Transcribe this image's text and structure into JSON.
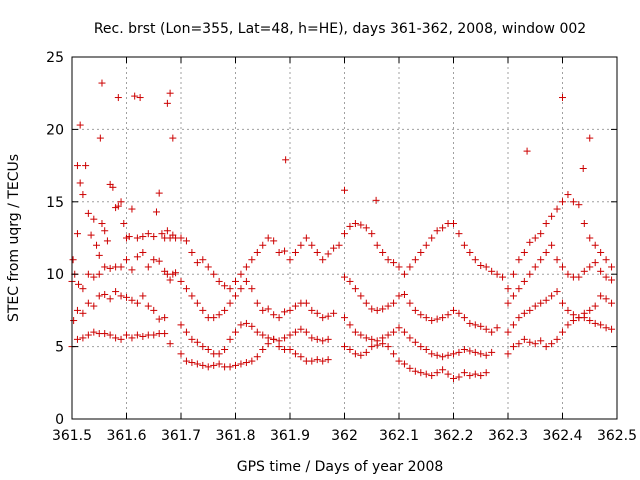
{
  "chart_data": {
    "type": "scatter",
    "title": "Rec. brst (Lon=355, Lat=48, h=HE), days 361-362, 2008, window 002",
    "xlabel": "GPS time / Days of year 2008",
    "ylabel": "STEC from uqrg / TECUs",
    "xlim": [
      361.5,
      362.5
    ],
    "ylim": [
      0,
      25
    ],
    "x_ticks": [
      "361.5",
      "361.6",
      "361.7",
      "361.8",
      "361.9",
      "362",
      "362.1",
      "362.2",
      "362.3",
      "362.4",
      "362.5"
    ],
    "y_ticks": [
      "0",
      "5",
      "10",
      "15",
      "20",
      "25"
    ],
    "grid": true,
    "marker": "plus",
    "color": "#cc0000",
    "series": [
      {
        "x": [
          361.502,
          361.51,
          361.515,
          361.52,
          361.525,
          361.53,
          361.535,
          361.54,
          361.545,
          361.55,
          361.555,
          361.56,
          361.565,
          361.57,
          361.575,
          361.58,
          361.585,
          361.59,
          361.595,
          361.6,
          361.605,
          361.61,
          361.62,
          361.63,
          361.64,
          361.65,
          361.655,
          361.66,
          361.665,
          361.67,
          361.675,
          361.68,
          361.685,
          361.69,
          361.5,
          361.505,
          361.512,
          361.52,
          361.53,
          361.54,
          361.55,
          361.56,
          361.57,
          361.58,
          361.59,
          361.6,
          361.61,
          361.62,
          361.63,
          361.64,
          361.65,
          361.66,
          361.67,
          361.675,
          361.68,
          361.685,
          361.69,
          361.503,
          361.51,
          361.52,
          361.53,
          361.54,
          361.55,
          361.56,
          361.57,
          361.58,
          361.59,
          361.6,
          361.61,
          361.62,
          361.63,
          361.64,
          361.65,
          361.66,
          361.67,
          361.5,
          361.51,
          361.52,
          361.53,
          361.54,
          361.55,
          361.56,
          361.57,
          361.58,
          361.59,
          361.6,
          361.61,
          361.62,
          361.63,
          361.64,
          361.65,
          361.66,
          361.67,
          361.68,
          361.7,
          361.71,
          361.72,
          361.73,
          361.74,
          361.75,
          361.76,
          361.77,
          361.78,
          361.79,
          361.8,
          361.81,
          361.82,
          361.83,
          361.84,
          361.85,
          361.86,
          361.87,
          361.88,
          361.89,
          361.9,
          361.91,
          361.92,
          361.93,
          361.94,
          361.95,
          361.96,
          361.97,
          361.98,
          361.99,
          361.7,
          361.71,
          361.72,
          361.73,
          361.74,
          361.75,
          361.76,
          361.77,
          361.78,
          361.79,
          361.8,
          361.81,
          361.82,
          361.83,
          361.84,
          361.85,
          361.86,
          361.87,
          361.88,
          361.89,
          361.9,
          361.91,
          361.92,
          361.93,
          361.94,
          361.95,
          361.96,
          361.97,
          361.98,
          361.7,
          361.71,
          361.72,
          361.73,
          361.74,
          361.75,
          361.76,
          361.77,
          361.78,
          361.79,
          361.8,
          361.81,
          361.82,
          361.83,
          361.84,
          361.85,
          361.86,
          361.87,
          361.88,
          361.89,
          361.9,
          361.91,
          361.92,
          361.93,
          361.94,
          361.95,
          361.96,
          361.97,
          361.7,
          361.71,
          361.72,
          361.73,
          361.74,
          361.75,
          361.76,
          361.77,
          361.78,
          361.79,
          361.8,
          361.81,
          361.82,
          361.83,
          361.84,
          361.85,
          361.86,
          361.87,
          361.88,
          361.89,
          361.9,
          361.91,
          361.92,
          361.93,
          361.94,
          361.95,
          361.96,
          361.97,
          362.0,
          362.01,
          362.02,
          362.03,
          362.04,
          362.05,
          362.06,
          362.07,
          362.08,
          362.09,
          362.1,
          362.11,
          362.12,
          362.13,
          362.14,
          362.15,
          362.16,
          362.17,
          362.18,
          362.19,
          362.2,
          362.21,
          362.22,
          362.23,
          362.24,
          362.25,
          362.26,
          362.27,
          362.28,
          362.29,
          362.0,
          362.01,
          362.02,
          362.03,
          362.04,
          362.05,
          362.06,
          362.07,
          362.08,
          362.09,
          362.1,
          362.11,
          362.12,
          362.13,
          362.14,
          362.15,
          362.16,
          362.17,
          362.18,
          362.19,
          362.2,
          362.21,
          362.22,
          362.23,
          362.24,
          362.25,
          362.26,
          362.27,
          362.28,
          362.0,
          362.01,
          362.02,
          362.03,
          362.04,
          362.05,
          362.06,
          362.07,
          362.08,
          362.09,
          362.1,
          362.11,
          362.12,
          362.13,
          362.14,
          362.15,
          362.16,
          362.17,
          362.18,
          362.19,
          362.2,
          362.21,
          362.22,
          362.23,
          362.24,
          362.25,
          362.26,
          362.27,
          362.0,
          362.01,
          362.02,
          362.03,
          362.04,
          362.05,
          362.06,
          362.07,
          362.08,
          362.09,
          362.1,
          362.11,
          362.12,
          362.13,
          362.14,
          362.15,
          362.16,
          362.17,
          362.18,
          362.19,
          362.2,
          362.21,
          362.22,
          362.23,
          362.24,
          362.25,
          362.26,
          362.3,
          362.31,
          362.32,
          362.33,
          362.34,
          362.35,
          362.36,
          362.37,
          362.38,
          362.39,
          362.4,
          362.41,
          362.42,
          362.43,
          362.44,
          362.45,
          362.46,
          362.47,
          362.48,
          362.49,
          362.3,
          362.31,
          362.32,
          362.33,
          362.34,
          362.35,
          362.36,
          362.37,
          362.38,
          362.39,
          362.4,
          362.41,
          362.42,
          362.43,
          362.44,
          362.45,
          362.46,
          362.47,
          362.48,
          362.49,
          362.3,
          362.31,
          362.32,
          362.33,
          362.34,
          362.35,
          362.36,
          362.37,
          362.38,
          362.39,
          362.4,
          362.41,
          362.42,
          362.43,
          362.44,
          362.45,
          362.46,
          362.47,
          362.48,
          362.49,
          362.3,
          362.31,
          362.32,
          362.33,
          362.34,
          362.35,
          362.36,
          362.37,
          362.38,
          362.39,
          362.4,
          362.41,
          362.42,
          362.43,
          362.44,
          362.45,
          362.46,
          362.47,
          362.48,
          362.49,
          361.51,
          361.515,
          361.552,
          361.555,
          361.615,
          361.625,
          361.675,
          361.68,
          361.685,
          362.335,
          362.4,
          362.438,
          362.45,
          361.585,
          361.892,
          362.0,
          362.058
        ],
        "y": [
          11.0,
          12.8,
          16.3,
          15.5,
          17.5,
          14.2,
          12.7,
          13.8,
          12.0,
          11.3,
          13.5,
          13.0,
          12.3,
          16.2,
          16.0,
          14.6,
          14.7,
          15.0,
          13.5,
          12.5,
          12.6,
          14.5,
          12.5,
          12.6,
          12.8,
          12.6,
          14.3,
          15.6,
          12.8,
          12.5,
          13.0,
          12.5,
          12.7,
          12.5,
          9.5,
          10.0,
          9.3,
          9.0,
          10.0,
          9.8,
          10.0,
          10.5,
          10.4,
          10.5,
          10.5,
          11.0,
          10.3,
          11.2,
          11.5,
          10.5,
          11.0,
          10.9,
          10.2,
          10.0,
          9.6,
          10.0,
          10.1,
          6.8,
          7.5,
          7.3,
          8.0,
          7.8,
          8.5,
          8.6,
          8.3,
          8.8,
          8.5,
          8.4,
          8.2,
          8.0,
          8.5,
          7.8,
          7.5,
          6.9,
          7.0,
          5.0,
          5.5,
          5.6,
          5.8,
          6.0,
          5.9,
          5.9,
          5.8,
          5.6,
          5.5,
          5.8,
          5.6,
          5.8,
          5.7,
          5.8,
          5.8,
          5.9,
          5.9,
          5.2,
          12.5,
          12.3,
          11.5,
          10.8,
          11.0,
          10.5,
          10.0,
          9.5,
          9.2,
          9.0,
          9.5,
          10.0,
          10.5,
          11.0,
          11.5,
          12.0,
          12.5,
          12.3,
          11.5,
          11.6,
          11.0,
          11.5,
          12.0,
          12.5,
          12.0,
          11.5,
          11.0,
          11.4,
          11.8,
          12.0,
          9.5,
          9.0,
          8.5,
          8.0,
          7.5,
          7.0,
          7.0,
          7.2,
          7.5,
          8.0,
          8.5,
          9.0,
          9.5,
          9.0,
          8.0,
          7.5,
          7.6,
          7.2,
          7.0,
          7.4,
          7.5,
          7.8,
          8.0,
          8.0,
          7.5,
          7.3,
          7.0,
          7.1,
          7.3,
          6.5,
          6.0,
          5.5,
          5.3,
          5.0,
          4.8,
          4.5,
          4.5,
          4.8,
          5.5,
          6.0,
          6.5,
          6.6,
          6.4,
          6.0,
          5.8,
          5.6,
          5.5,
          5.4,
          5.6,
          5.8,
          6.0,
          6.2,
          6.0,
          5.6,
          5.5,
          5.4,
          5.5,
          4.5,
          4.0,
          3.9,
          3.8,
          3.7,
          3.6,
          3.7,
          3.8,
          3.6,
          3.6,
          3.7,
          3.8,
          3.9,
          4.0,
          4.3,
          4.8,
          5.2,
          5.5,
          5.0,
          4.8,
          4.8,
          4.5,
          4.3,
          4.0,
          4.0,
          4.1,
          4.0,
          4.1,
          12.8,
          13.3,
          13.5,
          13.4,
          13.2,
          12.8,
          12.0,
          11.5,
          11.0,
          10.8,
          10.5,
          10.0,
          10.5,
          11.0,
          11.5,
          12.0,
          12.5,
          13.0,
          13.2,
          13.5,
          13.5,
          12.8,
          12.0,
          11.5,
          11.0,
          10.6,
          10.5,
          10.2,
          10.0,
          9.8,
          9.8,
          9.5,
          9.0,
          8.5,
          8.0,
          7.6,
          7.5,
          7.6,
          7.8,
          8.0,
          8.5,
          8.6,
          8.0,
          7.5,
          7.2,
          7.0,
          6.8,
          6.9,
          7.0,
          7.2,
          7.5,
          7.3,
          7.0,
          6.6,
          6.5,
          6.4,
          6.2,
          6.0,
          6.3,
          7.0,
          6.5,
          6.0,
          5.8,
          5.6,
          5.5,
          5.4,
          5.6,
          5.8,
          6.0,
          6.3,
          6.0,
          5.6,
          5.3,
          5.0,
          4.8,
          4.5,
          4.4,
          4.3,
          4.4,
          4.5,
          4.6,
          4.8,
          4.7,
          4.6,
          4.5,
          4.4,
          4.6,
          5.0,
          4.8,
          4.5,
          4.4,
          4.6,
          5.0,
          5.1,
          5.2,
          5.0,
          4.5,
          4.0,
          3.8,
          3.5,
          3.3,
          3.2,
          3.1,
          3.0,
          3.2,
          3.4,
          3.1,
          2.8,
          2.9,
          3.2,
          3.0,
          3.1,
          3.0,
          3.2,
          9.0,
          10.0,
          11.0,
          11.5,
          12.2,
          12.5,
          12.8,
          13.5,
          14.0,
          14.5,
          15.0,
          15.5,
          15.0,
          14.8,
          13.5,
          12.5,
          12.0,
          11.5,
          11.0,
          10.5,
          8.0,
          8.5,
          9.0,
          9.5,
          10.0,
          10.5,
          11.0,
          11.5,
          12.0,
          11.0,
          10.5,
          10.0,
          9.8,
          9.8,
          10.2,
          10.5,
          10.8,
          10.2,
          9.8,
          9.6,
          6.0,
          6.5,
          7.0,
          7.3,
          7.5,
          7.8,
          8.0,
          8.2,
          8.5,
          8.8,
          8.0,
          7.5,
          7.2,
          7.0,
          7.3,
          7.5,
          7.8,
          8.5,
          8.3,
          8.0,
          4.5,
          5.0,
          5.2,
          5.5,
          5.3,
          5.2,
          5.4,
          5.0,
          5.2,
          5.5,
          6.0,
          6.5,
          6.8,
          7.0,
          7.0,
          6.8,
          6.6,
          6.5,
          6.3,
          6.2,
          17.5,
          20.3,
          19.4,
          23.2,
          22.3,
          22.2,
          21.8,
          22.5,
          19.4,
          18.5,
          22.2,
          17.3,
          19.4,
          22.2,
          17.9,
          15.8,
          15.1
        ]
      }
    ]
  }
}
